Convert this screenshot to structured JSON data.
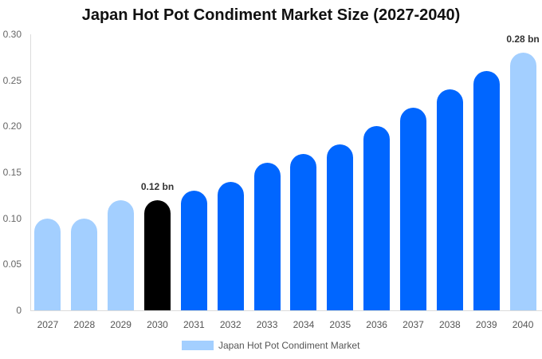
{
  "chart_data": {
    "type": "bar",
    "title": "Japan Hot Pot Condiment Market Size (2027-2040)",
    "xlabel": "",
    "ylabel": "",
    "ylim": [
      0,
      0.3
    ],
    "yticks": [
      "0",
      "0.05",
      "0.10",
      "0.15",
      "0.20",
      "0.25",
      "0.30"
    ],
    "categories": [
      "2027",
      "2028",
      "2029",
      "2030",
      "2031",
      "2032",
      "2033",
      "2034",
      "2035",
      "2036",
      "2037",
      "2038",
      "2039",
      "2040"
    ],
    "series": [
      {
        "name": "Japan Hot Pot Condiment Market",
        "values": [
          0.1,
          0.1,
          0.12,
          0.12,
          0.13,
          0.14,
          0.16,
          0.17,
          0.18,
          0.2,
          0.22,
          0.24,
          0.26,
          0.28
        ],
        "colors": [
          "#a3cfff",
          "#a3cfff",
          "#a3cfff",
          "#000000",
          "#0066ff",
          "#0066ff",
          "#0066ff",
          "#0066ff",
          "#0066ff",
          "#0066ff",
          "#0066ff",
          "#0066ff",
          "#0066ff",
          "#a3cfff"
        ]
      }
    ],
    "annotations": [
      {
        "category": "2030",
        "label": "0.12 bn"
      },
      {
        "category": "2040",
        "label": "0.28 bn"
      }
    ],
    "legend": {
      "position": "bottom",
      "label": "Japan Hot Pot Condiment Market",
      "color": "#a3cfff"
    },
    "grid": false
  }
}
